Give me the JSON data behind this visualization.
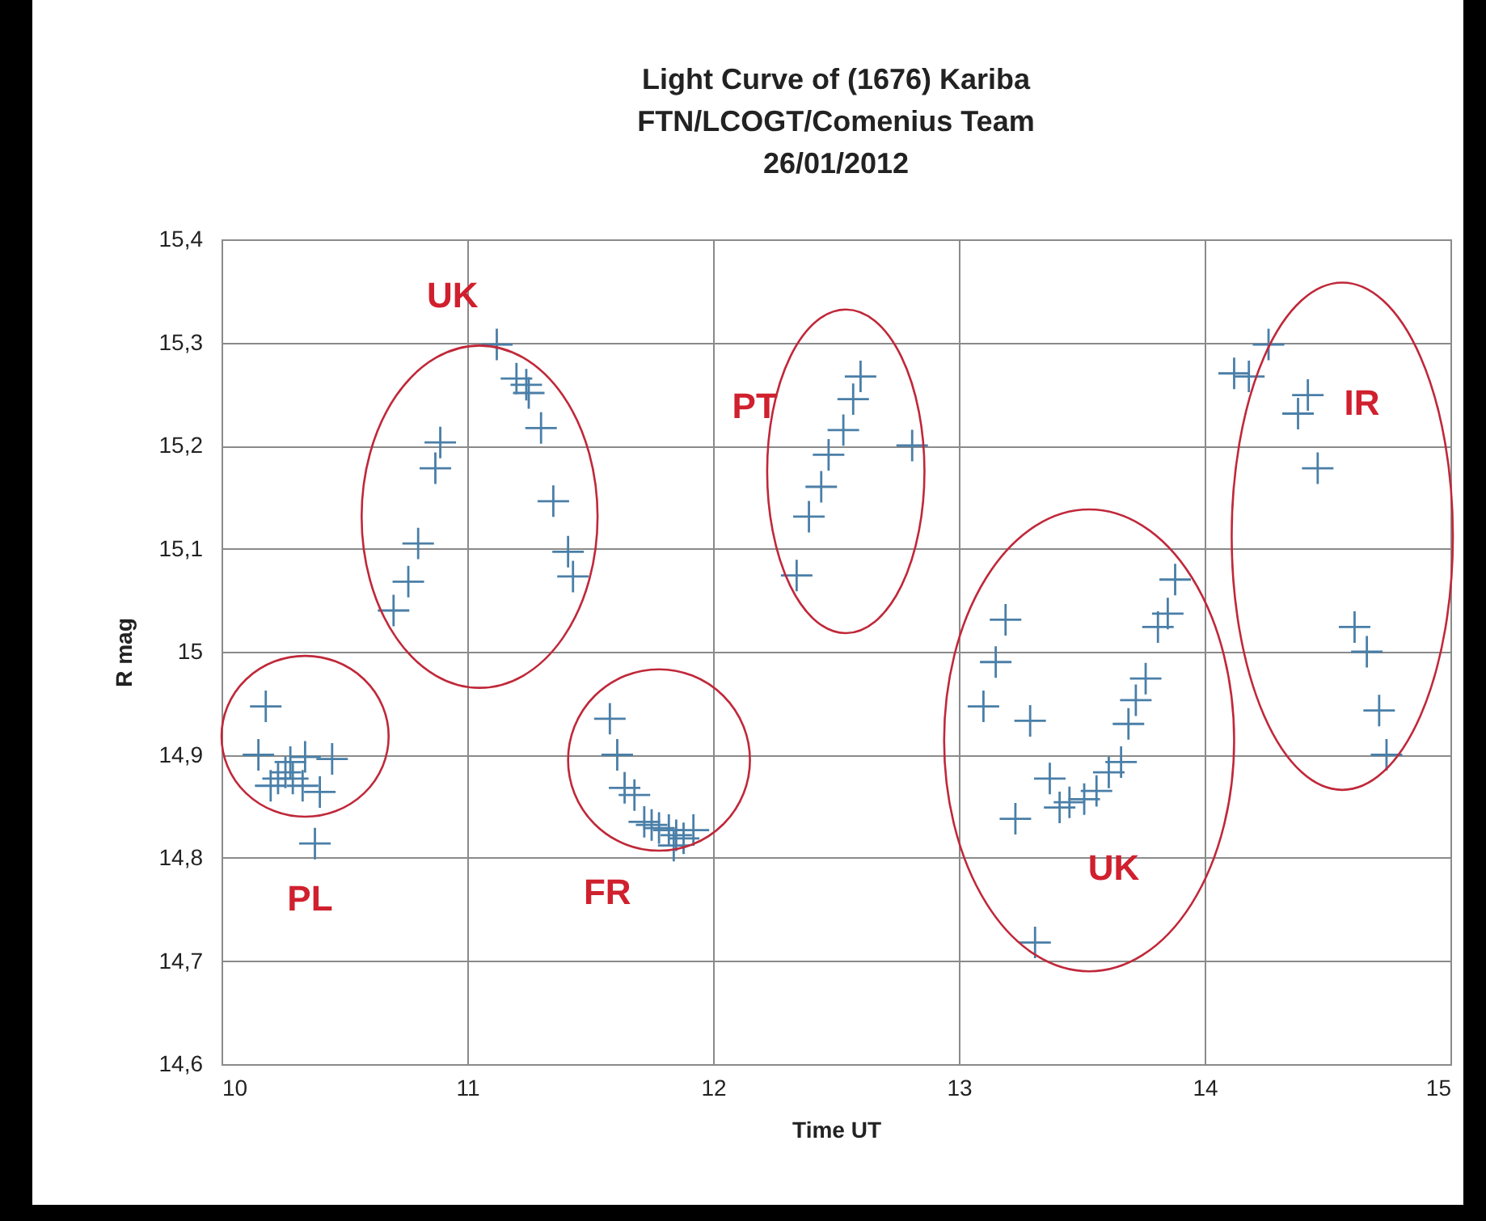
{
  "chart_data": {
    "type": "scatter",
    "title": "Light Curve of (1676) Kariba",
    "subtitle": "FTN/LCOGT/Comenius Team\n26/01/2012",
    "xlabel": "Time UT",
    "ylabel": "R mag",
    "x": [
      10.15,
      10.18,
      10.2,
      10.23,
      10.26,
      10.28,
      10.29,
      10.33,
      10.34,
      10.38,
      10.4,
      10.45,
      10.7,
      10.76,
      10.8,
      10.87,
      10.89,
      11.12,
      11.2,
      11.24,
      11.25,
      11.3,
      11.35,
      11.41,
      11.43,
      11.58,
      11.61,
      11.64,
      11.68,
      11.72,
      11.75,
      11.78,
      11.82,
      11.84,
      11.85,
      11.88,
      11.92,
      12.34,
      12.39,
      12.44,
      12.47,
      12.53,
      12.57,
      12.6,
      12.81,
      13.1,
      13.15,
      13.19,
      13.23,
      13.29,
      13.31,
      13.37,
      13.41,
      13.45,
      13.51,
      13.56,
      13.61,
      13.66,
      13.69,
      13.72,
      13.76,
      13.81,
      13.85,
      13.88,
      14.12,
      14.18,
      14.26,
      14.38,
      14.42,
      14.46,
      14.61,
      14.66,
      14.71,
      14.74
    ],
    "series": [
      {
        "color": "#4a7fa8",
        "values": [
          14.9,
          14.947,
          14.87,
          14.877,
          14.883,
          14.893,
          14.877,
          14.87,
          14.898,
          14.814,
          14.864,
          14.896,
          15.04,
          15.068,
          15.105,
          15.178,
          15.203,
          15.298,
          15.265,
          15.259,
          15.251,
          15.217,
          15.146,
          15.097,
          15.073,
          14.935,
          14.9,
          14.868,
          14.861,
          14.835,
          14.832,
          14.829,
          14.827,
          14.812,
          14.822,
          14.819,
          14.827,
          15.074,
          15.131,
          15.16,
          15.191,
          15.215,
          15.245,
          15.267,
          15.2,
          14.947,
          14.99,
          15.031,
          14.838,
          14.933,
          14.718,
          14.877,
          14.849,
          14.854,
          14.857,
          14.865,
          14.883,
          14.893,
          14.93,
          14.953,
          14.974,
          15.024,
          15.037,
          15.07,
          15.27,
          15.267,
          15.298,
          15.231,
          15.249,
          15.178,
          15.024,
          15.0,
          14.943,
          14.9
        ]
      }
    ],
    "xlim": [
      10,
      15
    ],
    "xticks": [
      10,
      11,
      12,
      13,
      14,
      15
    ],
    "ylim": [
      14.6,
      15.4
    ],
    "yticks": [
      {
        "value": 14.6,
        "label": "14,6"
      },
      {
        "value": 14.7,
        "label": "14,7"
      },
      {
        "value": 14.8,
        "label": "14,8"
      },
      {
        "value": 14.9,
        "label": "14,9"
      },
      15,
      {
        "value": 15.1,
        "label": "15,1"
      },
      {
        "value": 15.2,
        "label": "15,2"
      },
      {
        "value": 15.3,
        "label": "15,3"
      },
      {
        "value": 15.4,
        "label": "15,4"
      }
    ],
    "annotations": [
      "PL",
      "UK",
      "FR",
      "PT",
      "UK",
      "IR"
    ],
    "grid": true,
    "marker": "cross"
  }
}
